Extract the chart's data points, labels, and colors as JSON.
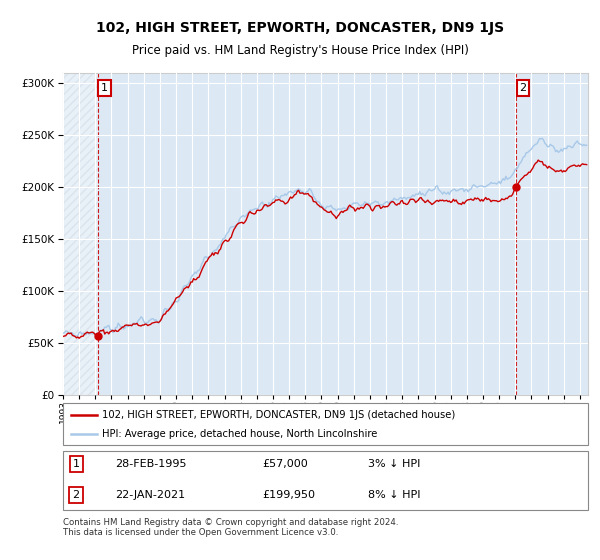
{
  "title": "102, HIGH STREET, EPWORTH, DONCASTER, DN9 1JS",
  "subtitle": "Price paid vs. HM Land Registry's House Price Index (HPI)",
  "hpi_label": "HPI: Average price, detached house, North Lincolnshire",
  "price_label": "102, HIGH STREET, EPWORTH, DONCASTER, DN9 1JS (detached house)",
  "transaction1": {
    "date": "28-FEB-1995",
    "price": 57000,
    "hpi_pct": "3% ↓ HPI",
    "label": "1"
  },
  "transaction2": {
    "date": "22-JAN-2021",
    "price": 199950,
    "hpi_pct": "8% ↓ HPI",
    "label": "2"
  },
  "footer": "Contains HM Land Registry data © Crown copyright and database right 2024.\nThis data is licensed under the Open Government Licence v3.0.",
  "hpi_color": "#a8c8e8",
  "price_color": "#cc0000",
  "bg_color": "#dce9f5",
  "grid_color": "#ffffff",
  "ylim": [
    0,
    310000
  ],
  "yticks": [
    0,
    50000,
    100000,
    150000,
    200000,
    250000,
    300000
  ],
  "t1_year": 1995.15,
  "t2_year": 2021.05
}
